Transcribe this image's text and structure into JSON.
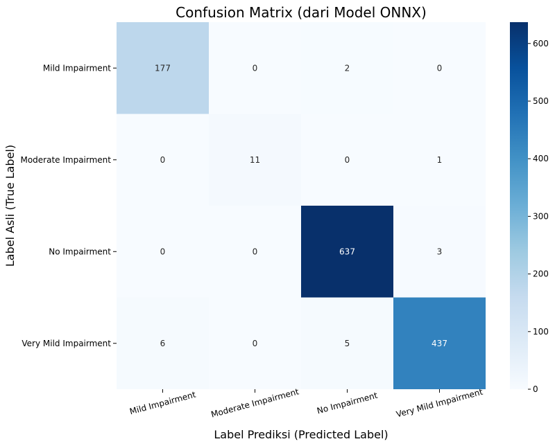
{
  "chart_data": {
    "type": "heatmap",
    "title": "Confusion Matrix (dari Model ONNX)",
    "xlabel": "Label Prediksi (Predicted Label)",
    "ylabel": "Label Asli (True Label)",
    "row_labels": [
      "Mild Impairment",
      "Moderate Impairment",
      "No Impairment",
      "Very Mild Impairment"
    ],
    "col_labels": [
      "Mild Impairment",
      "Moderate Impairment",
      "No Impairment",
      "Very Mild Impairment"
    ],
    "values": [
      [
        177,
        0,
        2,
        0
      ],
      [
        0,
        11,
        0,
        1
      ],
      [
        0,
        0,
        637,
        3
      ],
      [
        6,
        0,
        5,
        437
      ]
    ],
    "colormap": "Blues",
    "vmin": 0,
    "vmax": 637,
    "colorbar_ticks": [
      0,
      100,
      200,
      300,
      400,
      500,
      600
    ]
  }
}
